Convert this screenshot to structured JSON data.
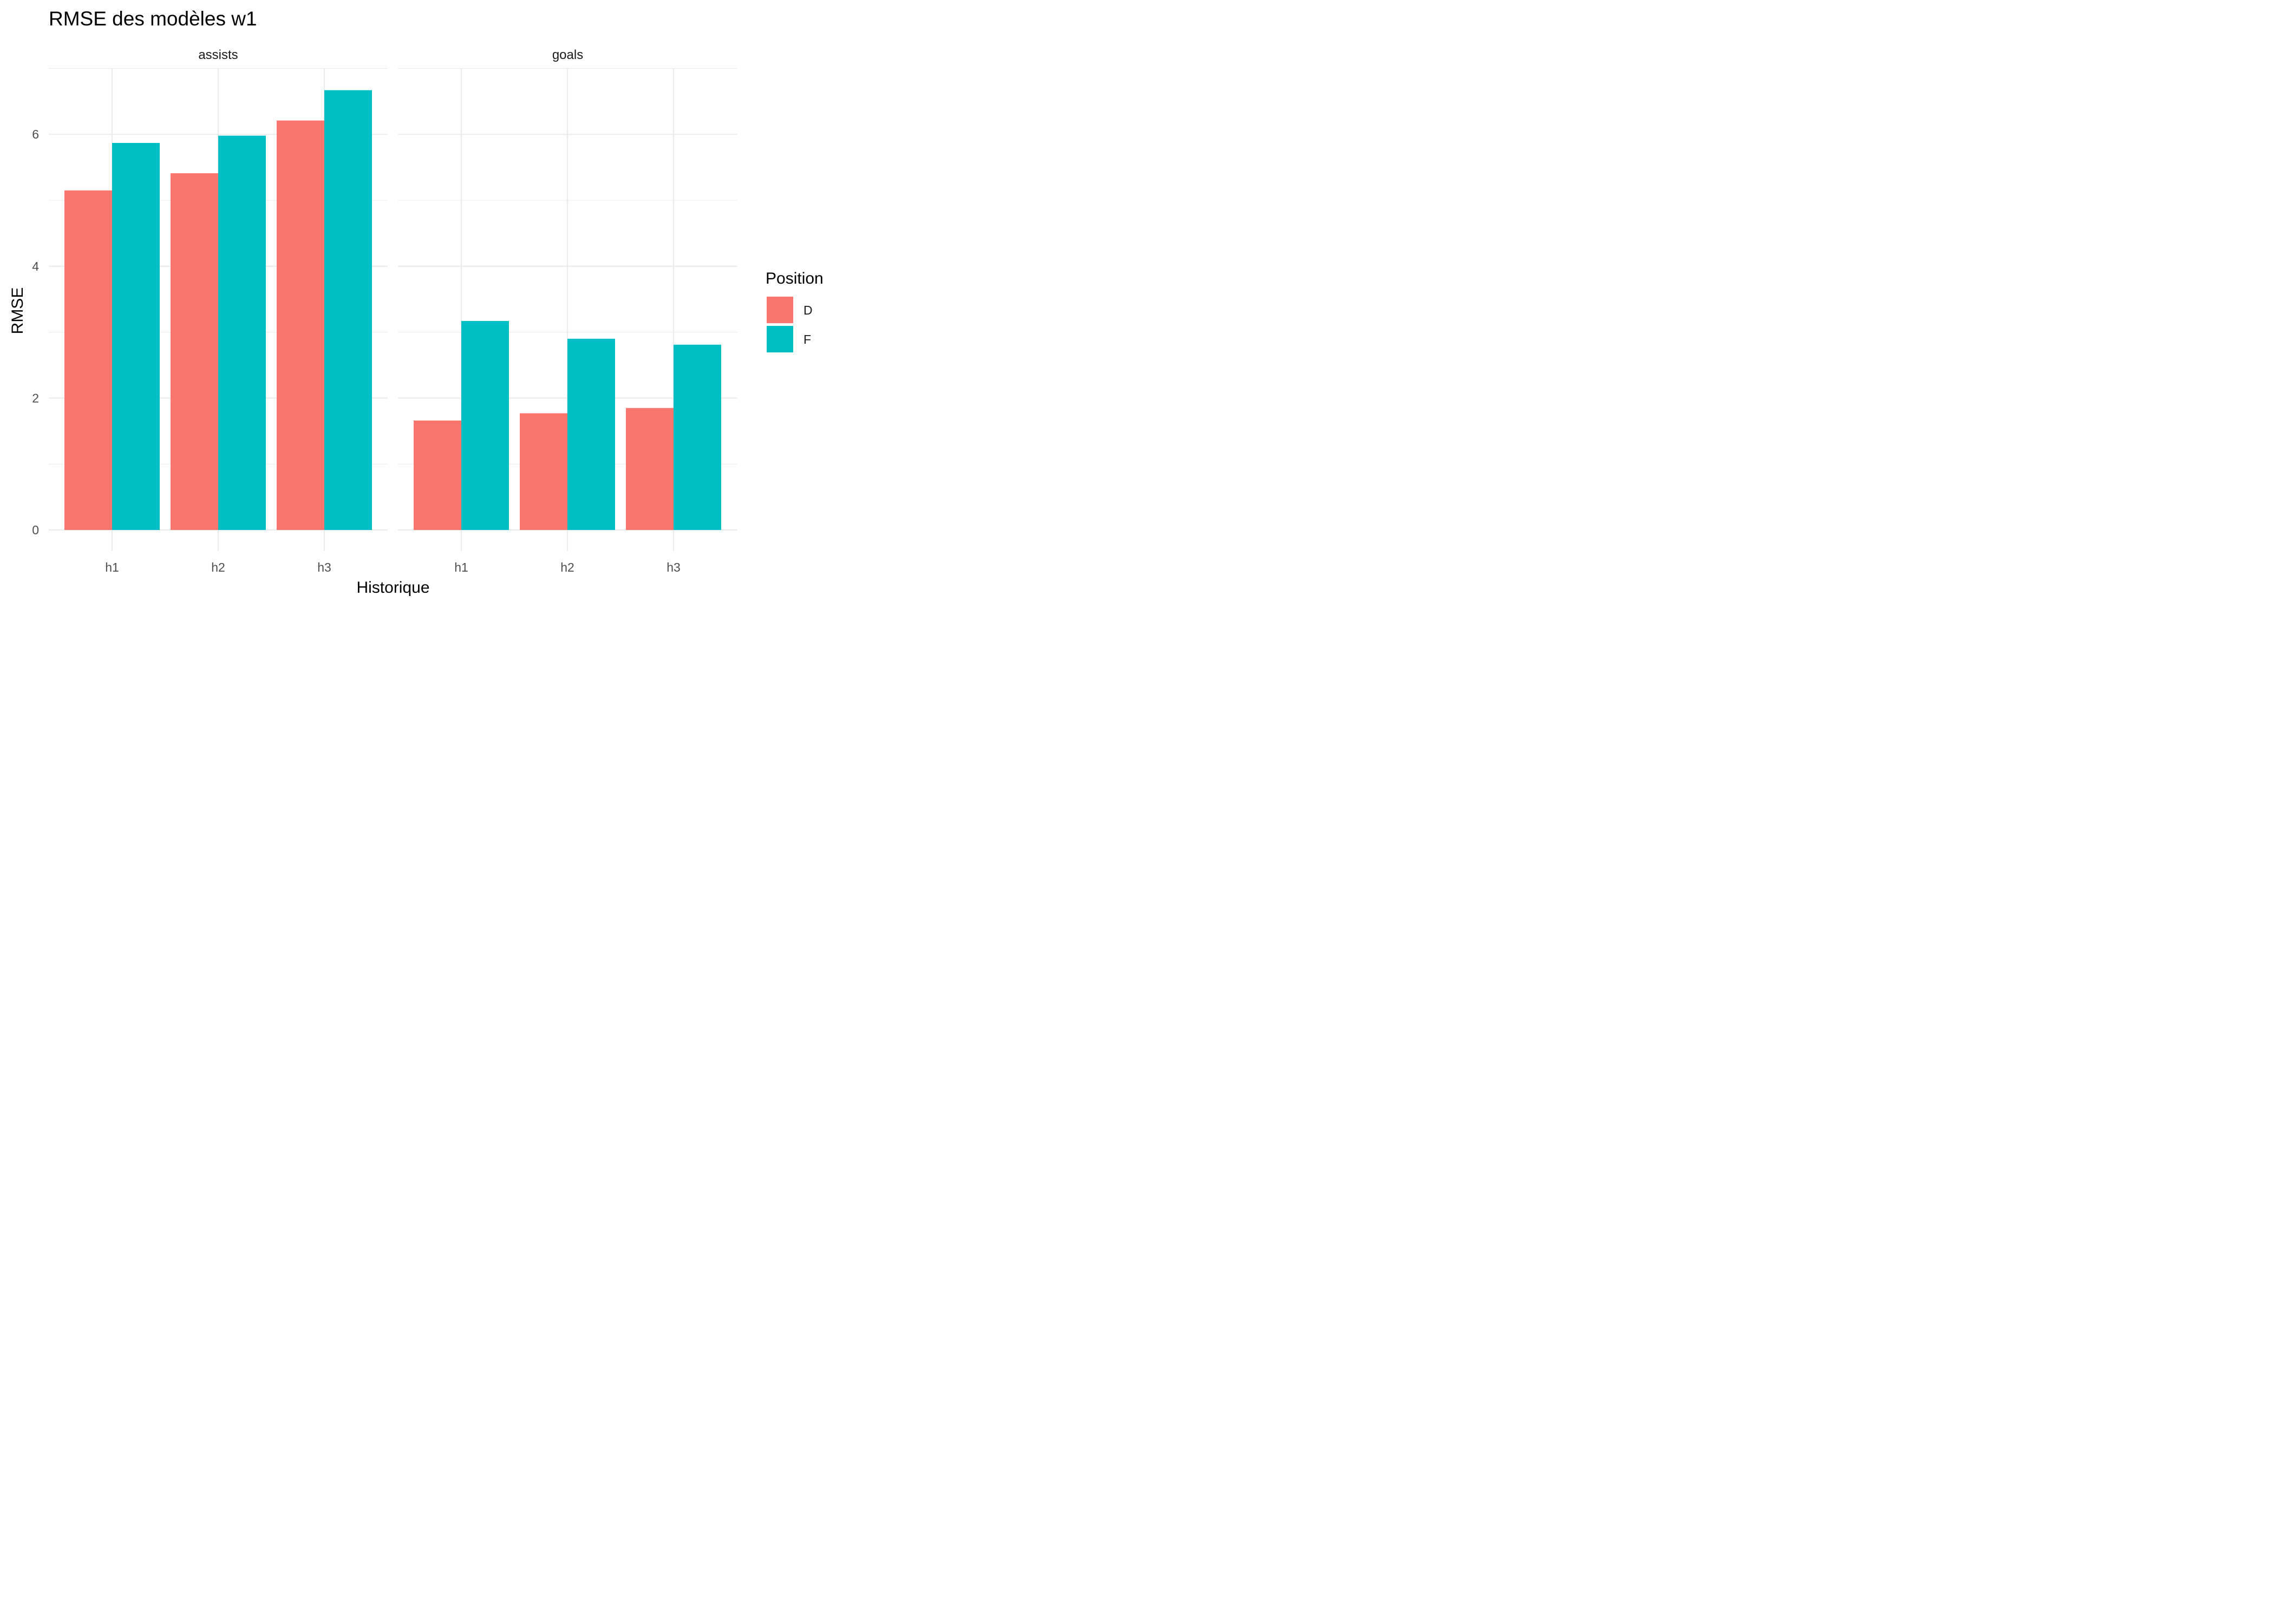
{
  "chart_data": {
    "type": "bar",
    "title": "RMSE des modèles w1",
    "xlabel": "Historique",
    "ylabel": "RMSE",
    "ylim": [
      0,
      7
    ],
    "y_ticks": [
      "0",
      "2",
      "4",
      "6"
    ],
    "grid": true,
    "legend_position": "right",
    "legend_title": "Position",
    "categories": [
      "h1",
      "h2",
      "h3"
    ],
    "facets": [
      {
        "label": "assists",
        "series": [
          {
            "name": "D",
            "color": "#F8766D",
            "values": [
              5.15,
              5.41,
              6.21
            ]
          },
          {
            "name": "F",
            "color": "#00BFC4",
            "values": [
              5.87,
              5.98,
              6.67
            ]
          }
        ]
      },
      {
        "label": "goals",
        "series": [
          {
            "name": "D",
            "color": "#F8766D",
            "values": [
              1.66,
              1.77,
              1.85
            ]
          },
          {
            "name": "F",
            "color": "#00BFC4",
            "values": [
              3.17,
              2.9,
              2.81
            ]
          }
        ]
      }
    ]
  }
}
